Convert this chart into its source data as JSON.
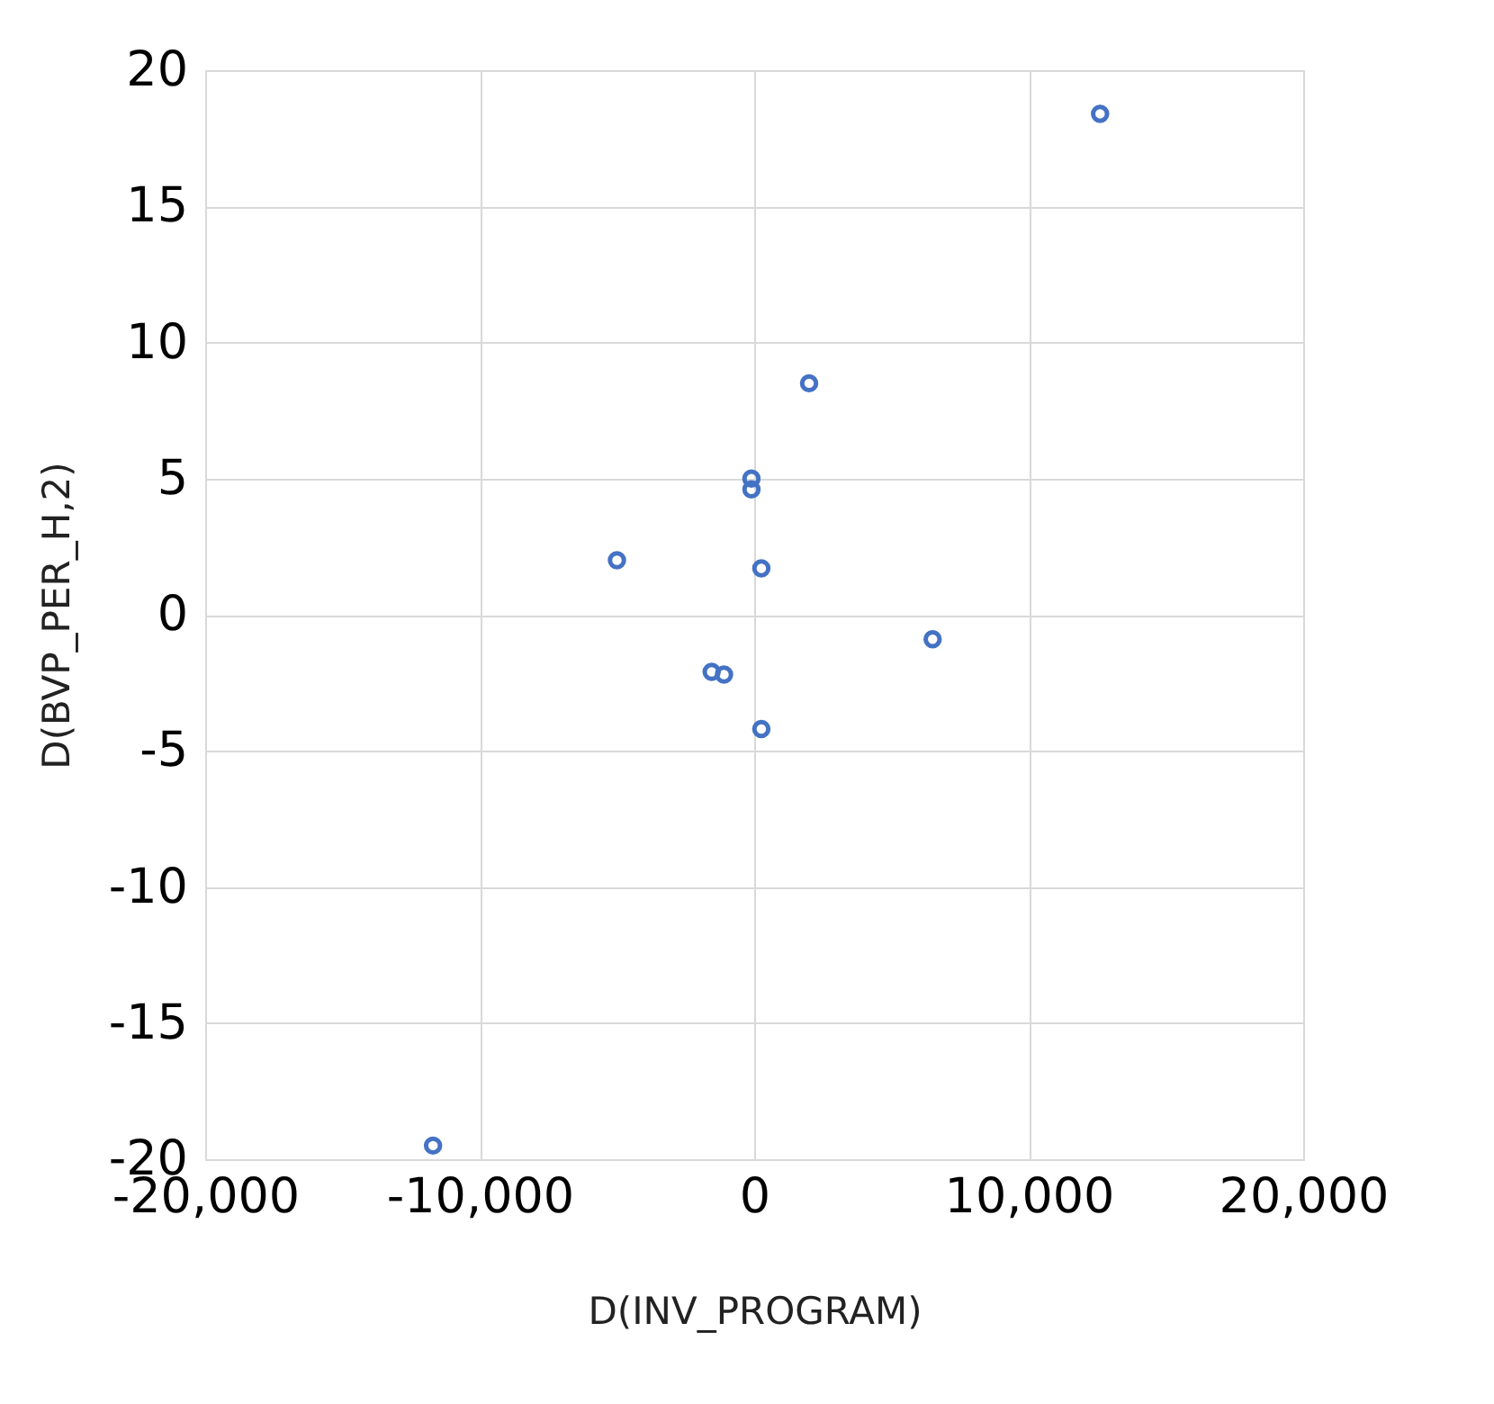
{
  "chart_data": {
    "type": "scatter",
    "xlabel": "D(INV_PROGRAM)",
    "ylabel": "D(BVP_PER_H,2)",
    "x": [
      12600,
      2000,
      -100,
      -100,
      -5000,
      260,
      6500,
      -1550,
      -1100,
      260,
      -11700
    ],
    "series": [
      {
        "color": "#4472c4",
        "values": [
          18.4,
          8.5,
          5.0,
          4.6,
          2.0,
          1.7,
          -0.9,
          -2.1,
          -2.2,
          -4.2,
          -19.5
        ]
      }
    ],
    "xlim": [
      -20000,
      20000
    ],
    "xticks": [
      {
        "value": -20000,
        "label": "-20,000"
      },
      {
        "value": -10000,
        "label": "-10,000"
      },
      0,
      {
        "value": 10000,
        "label": "10,000"
      },
      {
        "value": 20000,
        "label": "20,000"
      }
    ],
    "ylim": [
      -20,
      20
    ],
    "yticks": [
      -20,
      -15,
      -10,
      -5,
      0,
      5,
      10,
      15,
      20
    ],
    "grid": true,
    "marker": "circle"
  }
}
